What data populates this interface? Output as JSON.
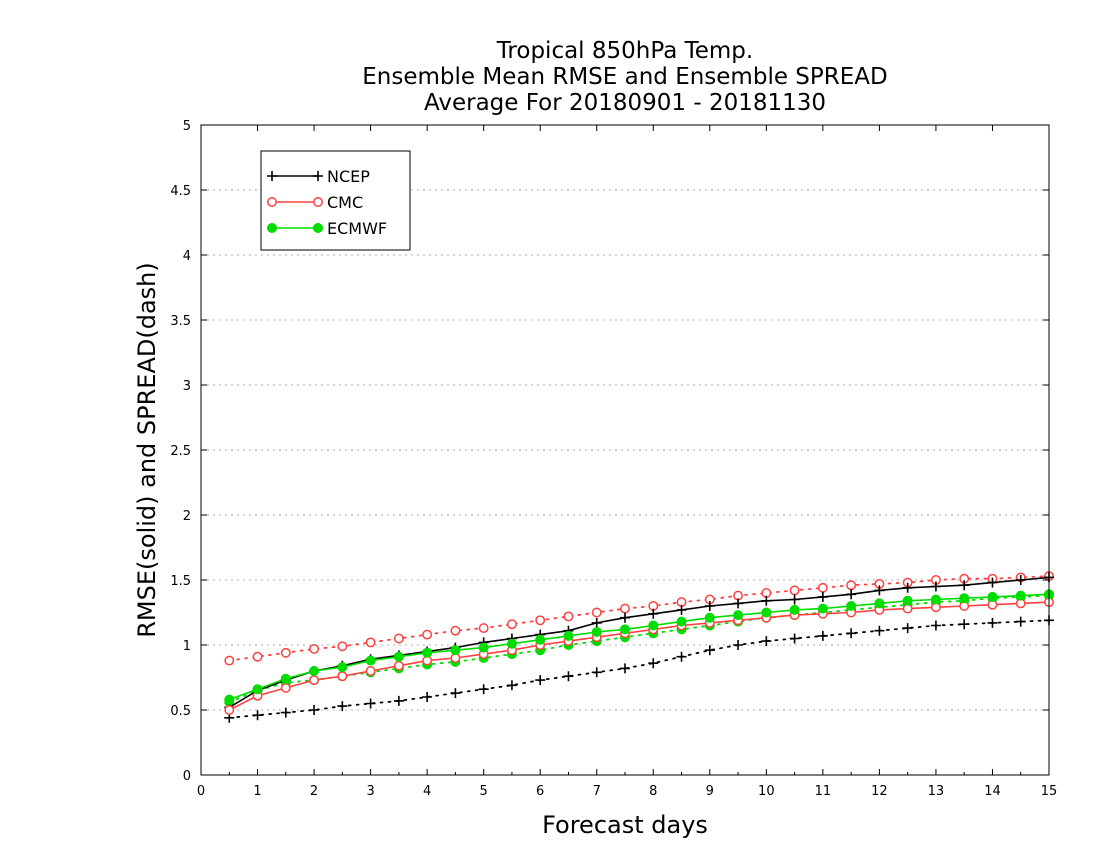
{
  "chart_data": {
    "type": "line",
    "title": [
      "Tropical 850hPa Temp.",
      "Ensemble Mean RMSE and Ensemble SPREAD",
      "Average For 20180901 - 20181130"
    ],
    "xlabel": "Forecast days",
    "ylabel": "RMSE(solid) and SPREAD(dash)",
    "xlim": [
      0,
      15
    ],
    "ylim": [
      0,
      5
    ],
    "xticks": [
      "0",
      "1",
      "2",
      "3",
      "4",
      "5",
      "6",
      "7",
      "8",
      "9",
      "10",
      "11",
      "12",
      "13",
      "14",
      "15"
    ],
    "yticks": [
      "0",
      "0.5",
      "1",
      "1.5",
      "2",
      "2.5",
      "3",
      "3.5",
      "4",
      "4.5",
      "5"
    ],
    "grid": "horizontal dotted",
    "legend_position": "top-left",
    "x": [
      0.5,
      1,
      1.5,
      2,
      2.5,
      3,
      3.5,
      4,
      4.5,
      5,
      5.5,
      6,
      6.5,
      7,
      7.5,
      8,
      8.5,
      9,
      9.5,
      10,
      10.5,
      11,
      11.5,
      12,
      12.5,
      13,
      13.5,
      14,
      14.5,
      15
    ],
    "series": [
      {
        "name": "NCEP",
        "color": "#000000",
        "marker": "plus",
        "rmse": [
          0.52,
          0.65,
          0.73,
          0.8,
          0.84,
          0.89,
          0.92,
          0.95,
          0.98,
          1.02,
          1.05,
          1.08,
          1.11,
          1.17,
          1.21,
          1.24,
          1.27,
          1.3,
          1.32,
          1.34,
          1.35,
          1.37,
          1.39,
          1.42,
          1.44,
          1.45,
          1.46,
          1.48,
          1.5,
          1.52
        ],
        "spread": [
          0.44,
          0.46,
          0.48,
          0.5,
          0.53,
          0.55,
          0.57,
          0.6,
          0.63,
          0.66,
          0.69,
          0.73,
          0.76,
          0.79,
          0.82,
          0.86,
          0.91,
          0.96,
          1.0,
          1.03,
          1.05,
          1.07,
          1.09,
          1.11,
          1.13,
          1.15,
          1.16,
          1.17,
          1.18,
          1.19
        ]
      },
      {
        "name": "CMC",
        "color": "#ff4040",
        "marker": "open-circle",
        "rmse": [
          0.5,
          0.61,
          0.67,
          0.73,
          0.76,
          0.8,
          0.84,
          0.88,
          0.9,
          0.93,
          0.96,
          1.0,
          1.03,
          1.06,
          1.09,
          1.12,
          1.15,
          1.17,
          1.19,
          1.21,
          1.23,
          1.24,
          1.25,
          1.27,
          1.28,
          1.29,
          1.3,
          1.31,
          1.32,
          1.33
        ],
        "spread": [
          0.88,
          0.91,
          0.94,
          0.97,
          0.99,
          1.02,
          1.05,
          1.08,
          1.11,
          1.13,
          1.16,
          1.19,
          1.22,
          1.25,
          1.28,
          1.3,
          1.33,
          1.35,
          1.38,
          1.4,
          1.42,
          1.44,
          1.46,
          1.47,
          1.48,
          1.5,
          1.51,
          1.51,
          1.52,
          1.53
        ]
      },
      {
        "name": "ECMWF",
        "color": "#00dd00",
        "marker": "filled-circle",
        "rmse": [
          0.58,
          0.66,
          0.74,
          0.8,
          0.83,
          0.88,
          0.91,
          0.94,
          0.96,
          0.98,
          1.01,
          1.04,
          1.07,
          1.1,
          1.12,
          1.15,
          1.18,
          1.21,
          1.23,
          1.25,
          1.27,
          1.28,
          1.3,
          1.32,
          1.34,
          1.35,
          1.36,
          1.37,
          1.38,
          1.39
        ],
        "spread": [
          0.56,
          0.65,
          0.71,
          0.73,
          0.76,
          0.79,
          0.82,
          0.85,
          0.87,
          0.9,
          0.93,
          0.96,
          1.0,
          1.03,
          1.06,
          1.09,
          1.12,
          1.15,
          1.18,
          1.21,
          1.23,
          1.25,
          1.27,
          1.29,
          1.31,
          1.33,
          1.34,
          1.36,
          1.37,
          1.38
        ]
      }
    ]
  }
}
